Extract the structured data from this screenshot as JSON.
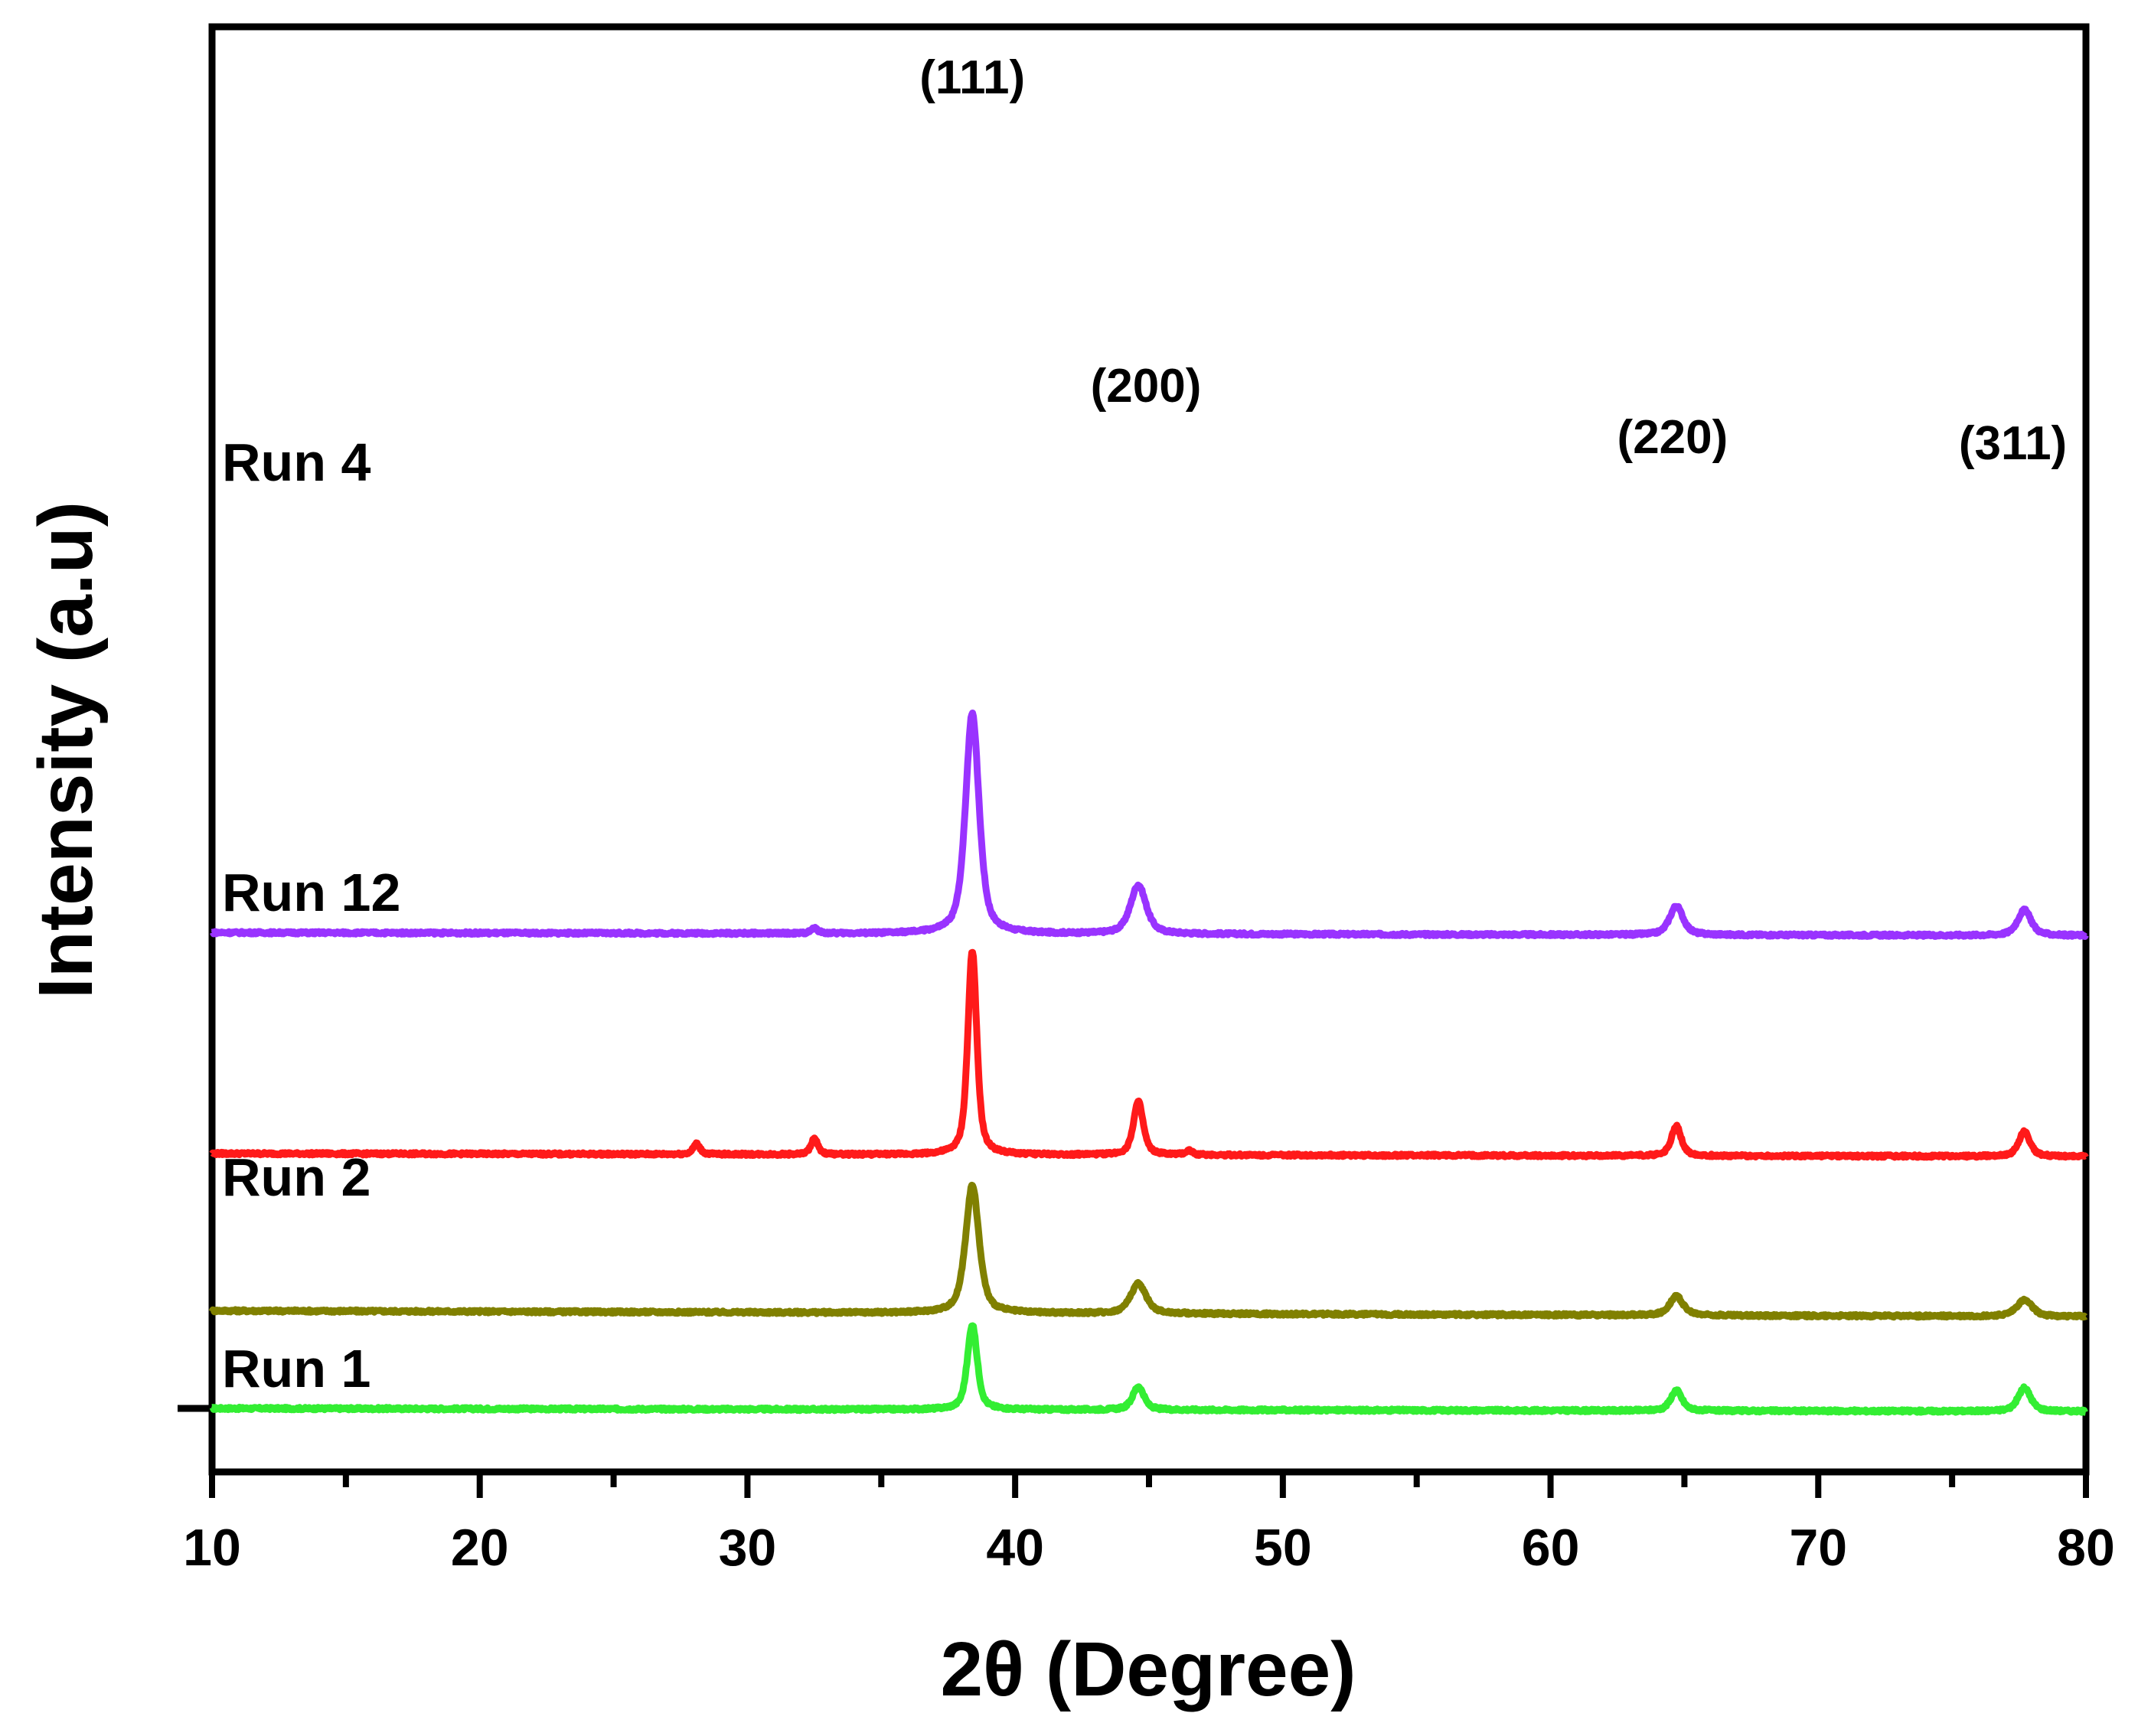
{
  "chart_data": {
    "type": "line",
    "xlabel": "2θ (Degree)",
    "ylabel": "Intensity (a.u)",
    "xlim": [
      10,
      80
    ],
    "x_ticks": [
      10,
      20,
      30,
      40,
      50,
      60,
      70,
      80
    ],
    "grid": false,
    "legend": "none",
    "peak_annotations": [
      {
        "label": "(111)",
        "x": 38.4
      },
      {
        "label": "(200)",
        "x": 44.6
      },
      {
        "label": "(220)",
        "x": 64.7
      },
      {
        "label": "(311)",
        "x": 77.7
      }
    ],
    "series": [
      {
        "name": "Run 1",
        "color": "#33ee33",
        "baseline": 0,
        "slope": -0.01,
        "peaks": [
          {
            "x": 38.4,
            "height": 20.0,
            "width": 0.22
          },
          {
            "x": 44.6,
            "height": 5.5,
            "width": 0.25
          },
          {
            "x": 64.7,
            "height": 4.8,
            "width": 0.25
          },
          {
            "x": 77.7,
            "height": 5.5,
            "width": 0.28
          }
        ]
      },
      {
        "name": "Run 2",
        "color": "#808000",
        "baseline": 23,
        "slope": -0.02,
        "peaks": [
          {
            "x": 38.4,
            "height": 30.0,
            "width": 0.3
          },
          {
            "x": 44.6,
            "height": 7.0,
            "width": 0.35
          },
          {
            "x": 64.7,
            "height": 4.5,
            "width": 0.3
          },
          {
            "x": 77.7,
            "height": 3.8,
            "width": 0.35
          }
        ]
      },
      {
        "name": "Run 12",
        "color": "#ff1a1a",
        "baseline": 60,
        "slope": -0.01,
        "peaks": [
          {
            "x": 28.1,
            "height": 2.5,
            "width": 0.15
          },
          {
            "x": 32.5,
            "height": 3.8,
            "width": 0.15
          },
          {
            "x": 38.4,
            "height": 48.0,
            "width": 0.2
          },
          {
            "x": 44.6,
            "height": 12.5,
            "width": 0.22
          },
          {
            "x": 46.5,
            "height": 1.0,
            "width": 0.15
          },
          {
            "x": 64.7,
            "height": 7.0,
            "width": 0.22
          },
          {
            "x": 77.7,
            "height": 5.8,
            "width": 0.25
          }
        ]
      },
      {
        "name": "Run 4",
        "color": "#9933ff",
        "baseline": 112,
        "slope": -0.01,
        "peaks": [
          {
            "x": 32.5,
            "height": 1.2,
            "width": 0.15
          },
          {
            "x": 38.4,
            "height": 52.0,
            "width": 0.3
          },
          {
            "x": 44.6,
            "height": 11.5,
            "width": 0.35
          },
          {
            "x": 64.7,
            "height": 6.8,
            "width": 0.3
          },
          {
            "x": 77.7,
            "height": 6.0,
            "width": 0.3
          }
        ]
      }
    ]
  }
}
